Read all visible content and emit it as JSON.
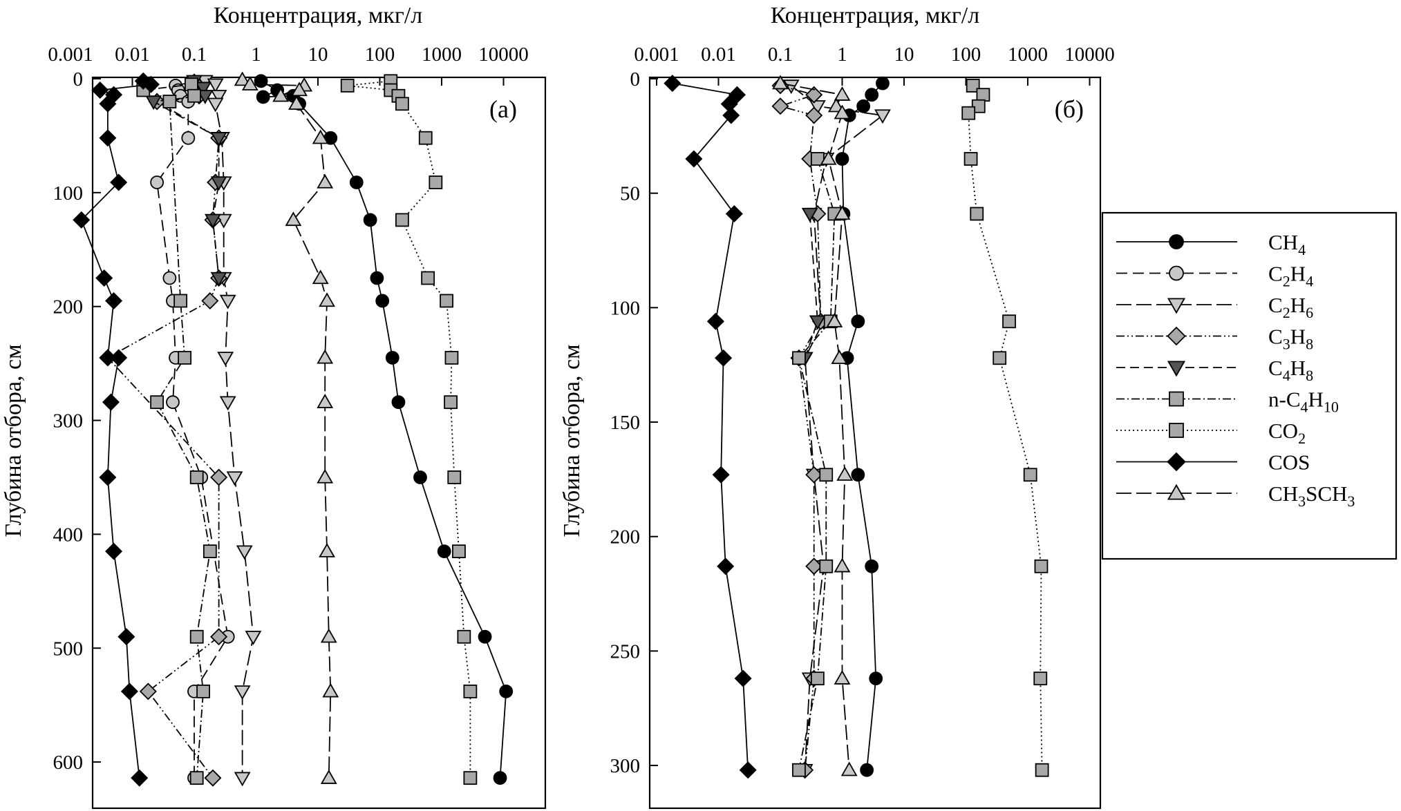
{
  "chart_data": [
    {
      "id": "a",
      "type": "line",
      "panel_label": "(а)",
      "xlabel": "Концентрация, мкг/л",
      "ylabel": "Глубина отбора, см",
      "xscale": "log",
      "xlim": [
        0.001,
        10000
      ],
      "ylim": [
        660,
        0
      ],
      "xticks": [
        "0.001",
        "0.01",
        "0.1",
        "1",
        "10",
        "100",
        "1000",
        "10000"
      ],
      "yticks": [
        "0",
        "100",
        "200",
        "300",
        "400",
        "500",
        "600"
      ],
      "series": [
        {
          "name": "CH4",
          "key": "CH4",
          "x": [
            1.2,
            2.2,
            1.3,
            4.0,
            5.0,
            16,
            42,
            70,
            90,
            110,
            160,
            200,
            450,
            1100,
            5000,
            11000,
            8800
          ],
          "y": [
            2,
            10,
            16,
            15,
            22,
            52,
            91,
            124,
            175,
            195,
            245,
            284,
            350,
            415,
            490,
            538,
            614
          ]
        },
        {
          "name": "C2H4",
          "key": "C2H4",
          "x": [
            0.09,
            0.05,
            0.055,
            0.06,
            0.08,
            0.08,
            0.025,
            0.04,
            0.045,
            0.05,
            0.045,
            0.13,
            0.35,
            0.1,
            0.1
          ],
          "y": [
            3,
            6,
            10,
            15,
            20,
            52,
            91,
            175,
            195,
            245,
            284,
            350,
            490,
            538,
            614
          ]
        },
        {
          "name": "C2H6",
          "key": "C2H6",
          "x": [
            0.15,
            0.22,
            0.25,
            0.22,
            0.28,
            0.3,
            0.3,
            0.3,
            0.35,
            0.32,
            0.35,
            0.45,
            0.65,
            0.9,
            0.6,
            0.6
          ],
          "y": [
            2,
            5,
            15,
            22,
            52,
            91,
            124,
            175,
            195,
            245,
            284,
            350,
            415,
            490,
            538,
            614
          ]
        },
        {
          "name": "C3H8",
          "key": "C3H8",
          "x": [
            0.1,
            0.12,
            0.12,
            0.025,
            0.25,
            0.22,
            0.2,
            0.25,
            0.18,
            0.004,
            0.25,
            0.25,
            0.018,
            0.2
          ],
          "y": [
            3,
            10,
            15,
            20,
            52,
            91,
            124,
            175,
            195,
            245,
            350,
            490,
            538,
            614
          ]
        },
        {
          "name": "C4H8",
          "key": "C4H8",
          "x": [
            0.1,
            0.14,
            0.15,
            0.022,
            0.25,
            0.25,
            0.2,
            0.25
          ],
          "y": [
            2,
            8,
            15,
            20,
            52,
            91,
            124,
            175
          ]
        },
        {
          "name": "n-C4H10",
          "key": "nC4H10",
          "x": [
            0.015,
            0.09,
            0.1,
            0.04,
            0.06,
            0.07,
            0.025,
            0.11,
            0.18,
            0.11,
            0.14,
            0.11
          ],
          "y": [
            10,
            5,
            15,
            20,
            195,
            245,
            284,
            350,
            415,
            490,
            538,
            614
          ]
        },
        {
          "name": "CO2",
          "key": "CO2",
          "x": [
            150,
            30,
            150,
            200,
            230,
            550,
            800,
            230,
            600,
            1200,
            1450,
            1400,
            1600,
            1900,
            2300,
            2900,
            2900
          ],
          "y": [
            2,
            6,
            10,
            15,
            22,
            52,
            91,
            124,
            175,
            195,
            245,
            284,
            350,
            415,
            490,
            538,
            614
          ]
        },
        {
          "name": "COS",
          "key": "COS",
          "x": [
            0.015,
            0.02,
            0.003,
            0.005,
            0.004,
            0.004,
            0.006,
            0.0015,
            0.0035,
            0.005,
            0.004,
            0.006,
            0.0045,
            0.004,
            0.005,
            0.008,
            0.009,
            0.013
          ],
          "y": [
            2,
            5,
            10,
            14,
            22,
            52,
            91,
            124,
            175,
            195,
            245,
            245,
            284,
            350,
            415,
            490,
            538,
            614
          ]
        },
        {
          "name": "CH3SCH3",
          "key": "CH3SCH3",
          "x": [
            0.6,
            0.8,
            6,
            2.5,
            5,
            4.5,
            11,
            13,
            4,
            11,
            14,
            13,
            13,
            13,
            14,
            15,
            16,
            15
          ],
          "y": [
            1,
            5,
            6,
            15,
            10,
            22,
            52,
            91,
            124,
            175,
            195,
            245,
            284,
            350,
            415,
            490,
            538,
            614
          ]
        }
      ]
    },
    {
      "id": "b",
      "type": "line",
      "panel_label": "(б)",
      "xlabel": "Концентрация, мкг/л",
      "ylabel": "Глубина отбора, см",
      "xscale": "log",
      "xlim": [
        0.001,
        10000
      ],
      "ylim": [
        320,
        0
      ],
      "xticks": [
        "0.001",
        "0.01",
        "0.1",
        "1",
        "10",
        "100",
        "1000",
        "10000"
      ],
      "yticks": [
        "0",
        "50",
        "100",
        "150",
        "200",
        "250",
        "300"
      ],
      "series": [
        {
          "name": "CH4",
          "key": "CH4",
          "x": [
            4.5,
            3.0,
            2.2,
            1.3,
            1.0,
            1.05,
            1.8,
            1.2,
            1.8,
            3.0,
            3.5,
            2.5
          ],
          "y": [
            2,
            7,
            12,
            16,
            35,
            59,
            106,
            122,
            173,
            213,
            262,
            302
          ]
        },
        {
          "name": "C2H4",
          "key": "C2H4",
          "x": [],
          "y": []
        },
        {
          "name": "C2H6",
          "key": "C2H6",
          "x": [
            0.15,
            0.4,
            4.5,
            0.55,
            0.35,
            0.45,
            0.5,
            0.25,
            0.35,
            0.5,
            0.5,
            0.3,
            0.25
          ],
          "y": [
            3,
            12,
            16,
            35,
            59,
            106,
            106,
            122,
            173,
            213,
            213,
            262,
            302
          ]
        },
        {
          "name": "C3H8",
          "key": "C3H8",
          "x": [
            0.1,
            0.35,
            0.1,
            0.35,
            0.3,
            0.4,
            0.45,
            0.2,
            0.35,
            0.35,
            0.35,
            0.25
          ],
          "y": [
            3,
            7,
            12,
            16,
            35,
            59,
            106,
            122,
            173,
            213,
            262,
            302
          ]
        },
        {
          "name": "C4H8",
          "key": "C4H8",
          "x": [
            0.3,
            0.4,
            0.4,
            0.25
          ],
          "y": [
            59,
            106,
            106,
            122
          ]
        },
        {
          "name": "n-C4H10",
          "key": "nC4H10",
          "x": [
            0.4,
            0.75,
            0.65,
            0.2,
            0.55,
            0.55,
            0.4,
            0.2
          ],
          "y": [
            35,
            59,
            106,
            122,
            173,
            213,
            262,
            302
          ]
        },
        {
          "name": "CO2",
          "key": "CO2",
          "x": [
            130,
            190,
            160,
            110,
            120,
            150,
            500,
            350,
            1100,
            1650,
            1600,
            1700
          ],
          "y": [
            3,
            7,
            12,
            15,
            35,
            59,
            106,
            122,
            173,
            213,
            262,
            302
          ]
        },
        {
          "name": "COS",
          "key": "COS",
          "x": [
            0.0018,
            0.02,
            0.015,
            0.016,
            0.004,
            0.018,
            0.009,
            0.012,
            0.011,
            0.013,
            0.025,
            0.03
          ],
          "y": [
            2,
            7,
            11,
            16,
            35,
            59,
            106,
            122,
            173,
            213,
            262,
            302
          ]
        },
        {
          "name": "CH3SCH3",
          "key": "CH3SCH3",
          "x": [
            0.1,
            1.0,
            0.8,
            1.0,
            0.6,
            1.0,
            0.75,
            0.9,
            1.1,
            1.0,
            1.0,
            1.3
          ],
          "y": [
            2,
            7,
            12,
            15,
            35,
            59,
            106,
            122,
            173,
            213,
            262,
            302
          ]
        }
      ]
    }
  ],
  "legend": {
    "placement": "right",
    "entries": [
      {
        "key": "CH4",
        "parts": [
          {
            "t": "CH"
          },
          {
            "s": "4"
          }
        ]
      },
      {
        "key": "C2H4",
        "parts": [
          {
            "t": "C"
          },
          {
            "s": "2"
          },
          {
            "t": "H"
          },
          {
            "s": "4"
          }
        ]
      },
      {
        "key": "C2H6",
        "parts": [
          {
            "t": "C"
          },
          {
            "s": "2"
          },
          {
            "t": "H"
          },
          {
            "s": "6"
          }
        ]
      },
      {
        "key": "C3H8",
        "parts": [
          {
            "t": "C"
          },
          {
            "s": "3"
          },
          {
            "t": "H"
          },
          {
            "s": "8"
          }
        ]
      },
      {
        "key": "C4H8",
        "parts": [
          {
            "t": "C"
          },
          {
            "s": "4"
          },
          {
            "t": "H"
          },
          {
            "s": "8"
          }
        ]
      },
      {
        "key": "nC4H10",
        "parts": [
          {
            "t": "n-C"
          },
          {
            "s": "4"
          },
          {
            "t": "H"
          },
          {
            "s": "10"
          }
        ]
      },
      {
        "key": "CO2",
        "parts": [
          {
            "t": "CO"
          },
          {
            "s": "2"
          }
        ]
      },
      {
        "key": "COS",
        "parts": [
          {
            "t": "COS"
          }
        ]
      },
      {
        "key": "CH3SCH3",
        "parts": [
          {
            "t": "CH"
          },
          {
            "s": "3"
          },
          {
            "t": "SCH"
          },
          {
            "s": "3"
          }
        ]
      }
    ]
  },
  "styles": {
    "CH4": {
      "marker": "circle",
      "fill": "#000000",
      "dash": ""
    },
    "C2H4": {
      "marker": "circle",
      "fill": "#c8c8c8",
      "dash": "16 8"
    },
    "C2H6": {
      "marker": "tri-down",
      "fill": "#c8c8c8",
      "dash": "22 7"
    },
    "C3H8": {
      "marker": "diamond",
      "fill": "#a8a8a8",
      "dash": "12 4 2 4 2 4"
    },
    "C4H8": {
      "marker": "tri-down",
      "fill": "#555555",
      "dash": "13 7"
    },
    "nC4H10": {
      "marker": "square",
      "fill": "#a8a8a8",
      "dash": "12 4 2 4"
    },
    "CO2": {
      "marker": "square",
      "fill": "#a8a8a8",
      "dash": "2 4"
    },
    "COS": {
      "marker": "diamond",
      "fill": "#000000",
      "dash": ""
    },
    "CH3SCH3": {
      "marker": "tri-up",
      "fill": "#c8c8c8",
      "dash": "22 7"
    }
  }
}
